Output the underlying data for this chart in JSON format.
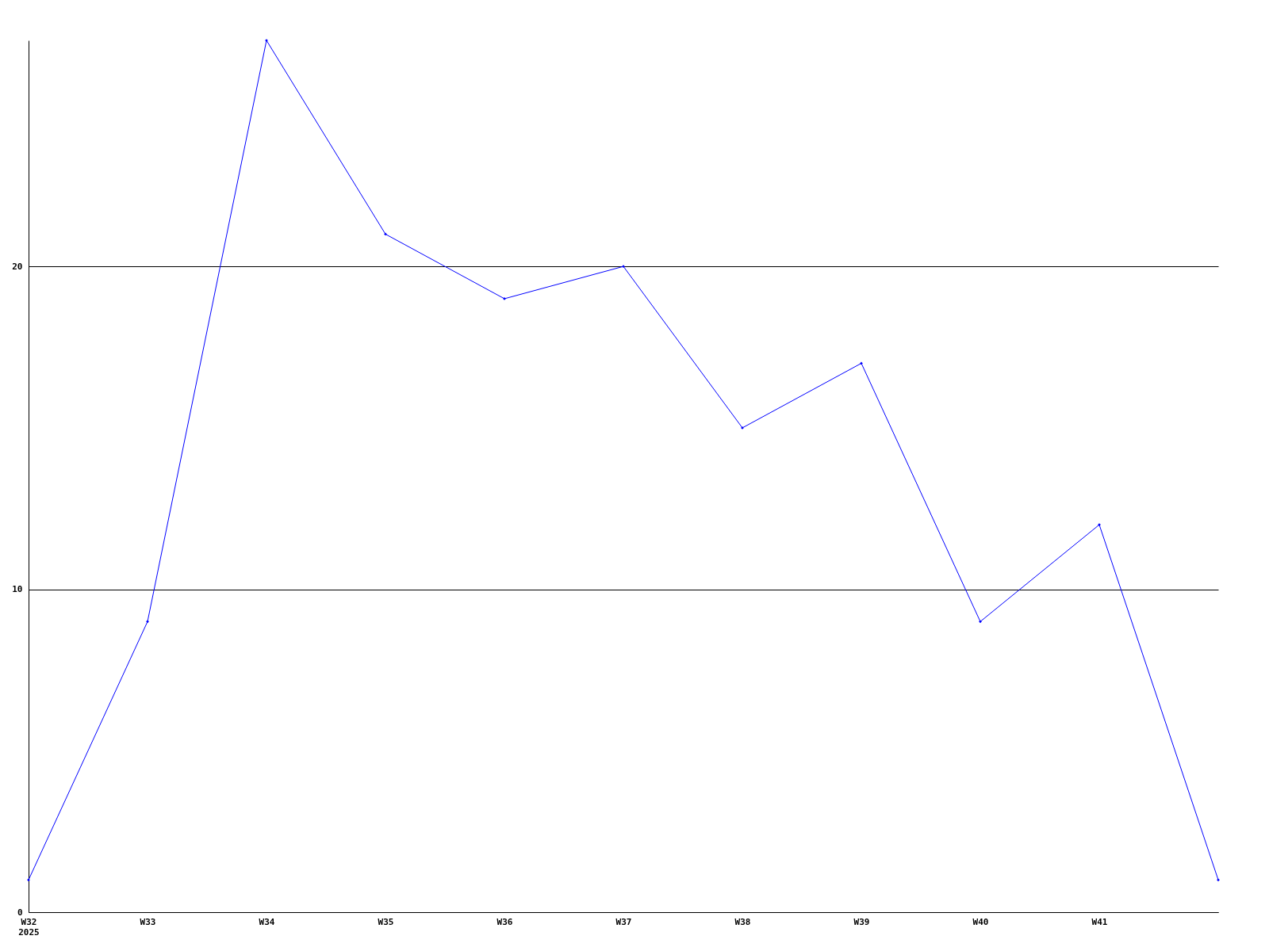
{
  "chart_data": {
    "type": "line",
    "categories": [
      "W32\n2025",
      "W33",
      "W34",
      "W35",
      "W36",
      "W37",
      "W38",
      "W39",
      "W40",
      "W41",
      null
    ],
    "series": [
      {
        "color": "#0000ff",
        "values": [
          1,
          9,
          27,
          21,
          19,
          20,
          15,
          17,
          9,
          12,
          1
        ]
      }
    ],
    "ylim": [
      0,
      27
    ],
    "yticks": [
      0,
      10,
      20
    ],
    "grid": "y",
    "marker": "diamond",
    "line_style": "solid",
    "legend": false
  }
}
